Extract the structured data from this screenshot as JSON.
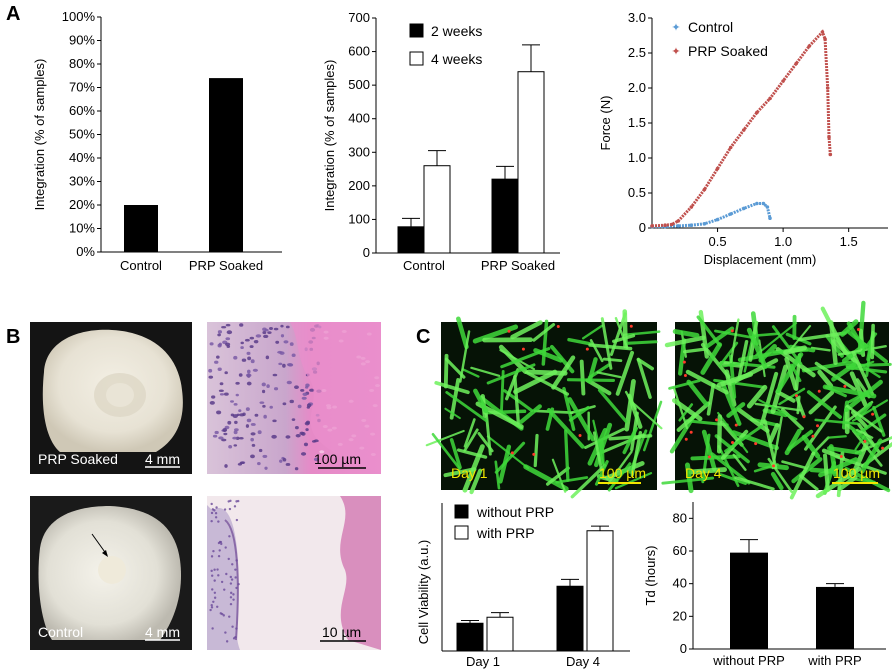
{
  "panels": {
    "a": "A",
    "b": "B",
    "c": "C"
  },
  "chart_data": [
    {
      "type": "bar",
      "categories": [
        "Control",
        "PRP Soaked"
      ],
      "values": [
        20,
        74
      ],
      "xlabel": "",
      "ylabel": "Integration (% of samples)",
      "ylim": [
        0,
        100
      ],
      "yticks": [
        "0%",
        "10%",
        "20%",
        "30%",
        "40%",
        "50%",
        "60%",
        "70%",
        "80%",
        "90%",
        "100%"
      ],
      "grid": false,
      "colors": {
        "bar": "#000000"
      }
    },
    {
      "type": "bar",
      "categories": [
        "Control",
        "PRP Soaked"
      ],
      "series": [
        {
          "name": "2 weeks",
          "values": [
            78,
            220
          ],
          "errors": [
            25,
            38
          ],
          "color": "#000000"
        },
        {
          "name": "4 weeks",
          "values": [
            260,
            540
          ],
          "errors": [
            45,
            80
          ],
          "color": "#ffffff"
        }
      ],
      "xlabel": "",
      "ylabel": "Integration (% of samples)",
      "ylim": [
        0,
        700
      ],
      "yticks": [
        "0",
        "100",
        "200",
        "300",
        "400",
        "500",
        "600",
        "700"
      ],
      "legend": "top-left",
      "grid": false
    },
    {
      "type": "scatter",
      "series": [
        {
          "name": "Control",
          "color": "#5b9bd5",
          "x": [
            0.0,
            0.1,
            0.2,
            0.3,
            0.4,
            0.5,
            0.6,
            0.7,
            0.8,
            0.85,
            0.88,
            0.9
          ],
          "y": [
            0.02,
            0.02,
            0.03,
            0.04,
            0.06,
            0.12,
            0.2,
            0.28,
            0.35,
            0.35,
            0.3,
            0.14
          ]
        },
        {
          "name": "PRP Soaked",
          "color": "#c0504d",
          "x": [
            0.0,
            0.1,
            0.15,
            0.2,
            0.3,
            0.4,
            0.5,
            0.6,
            0.7,
            0.8,
            0.9,
            1.0,
            1.1,
            1.2,
            1.3,
            1.32,
            1.34,
            1.35,
            1.36
          ],
          "y": [
            0.03,
            0.04,
            0.05,
            0.1,
            0.3,
            0.55,
            0.85,
            1.15,
            1.4,
            1.65,
            1.85,
            2.1,
            2.35,
            2.6,
            2.8,
            2.7,
            2.0,
            1.3,
            1.05
          ]
        }
      ],
      "xlabel": "Displacement (mm)",
      "ylabel": "Force (N)",
      "xlim": [
        0,
        1.8
      ],
      "ylim": [
        0,
        3.0
      ],
      "xticks": [
        "0.5",
        "1.0",
        "1.5"
      ],
      "yticks": [
        "0",
        "0.5",
        "1.0",
        "1.5",
        "2.0",
        "2.5",
        "3.0"
      ],
      "legend": "top-left",
      "grid": false
    },
    {
      "type": "bar",
      "categories": [
        "Day 1",
        "Day 4"
      ],
      "series": [
        {
          "name": "without PRP",
          "values": [
            0.6,
            1.4
          ],
          "errors": [
            0.06,
            0.15
          ],
          "color": "#000000"
        },
        {
          "name": "with PRP",
          "values": [
            0.73,
            2.6
          ],
          "errors": [
            0.1,
            0.1
          ],
          "color": "#ffffff"
        }
      ],
      "xlabel": "",
      "ylabel": "Cell Viability (a.u.)",
      "ylim": [
        0,
        3.2
      ],
      "legend": "top-left",
      "grid": false
    },
    {
      "type": "bar",
      "categories": [
        "without PRP",
        "with PRP"
      ],
      "values": [
        59,
        38
      ],
      "errors": [
        8,
        2
      ],
      "xlabel": "",
      "ylabel": "Td (hours)",
      "ylim": [
        0,
        90
      ],
      "yticks": [
        "0",
        "20",
        "40",
        "60",
        "80"
      ],
      "grid": false,
      "colors": {
        "bar": "#000000"
      }
    }
  ],
  "photos": {
    "prp_label": "PRP Soaked",
    "prp_scale": "4 mm",
    "histo_top_scale": "100 µm",
    "control_label": "Control",
    "control_scale": "4 mm",
    "histo_bottom_scale": "10 µm",
    "day1_label": "Day 1",
    "day1_scale": "100 µm",
    "day4_label": "Day 4",
    "day4_scale": "100 µm"
  }
}
